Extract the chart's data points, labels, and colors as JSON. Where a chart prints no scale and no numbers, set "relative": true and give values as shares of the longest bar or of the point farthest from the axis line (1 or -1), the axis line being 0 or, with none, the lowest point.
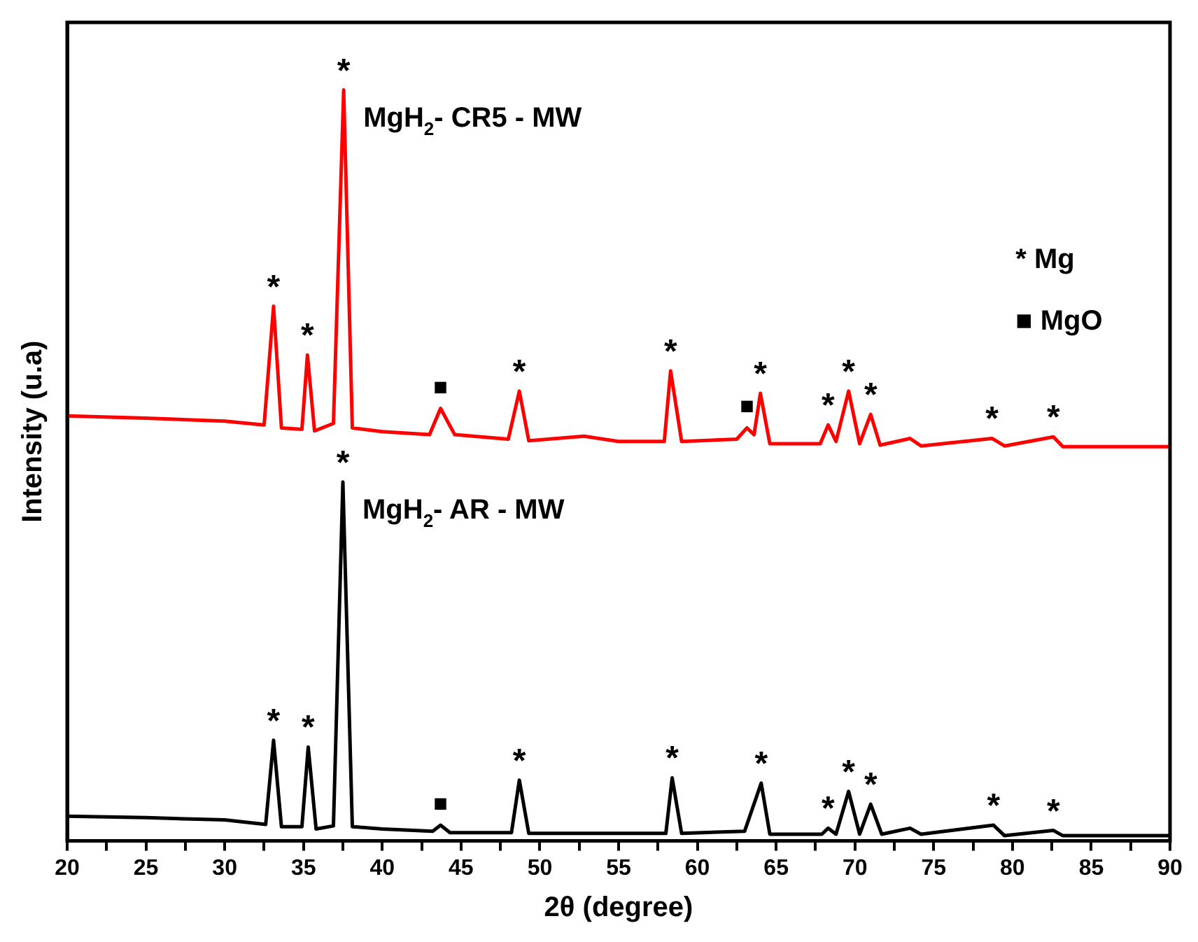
{
  "chart_data": {
    "type": "line",
    "relative": true,
    "xlabel": "2θ (degree)",
    "ylabel": "Intensity (u.a)",
    "xlim": [
      20,
      90
    ],
    "xticks": [
      20,
      {
        "value": 22.5,
        "label": null
      },
      25,
      {
        "value": 27.5,
        "label": null
      },
      30,
      {
        "value": 32.5,
        "label": null
      },
      35,
      {
        "value": 37.5,
        "label": null
      },
      40,
      {
        "value": 42.5,
        "label": null
      },
      45,
      {
        "value": 47.5,
        "label": null
      },
      50,
      {
        "value": 52.5,
        "label": null
      },
      55,
      {
        "value": 57.5,
        "label": null
      },
      60,
      {
        "value": 62.5,
        "label": null
      },
      65,
      {
        "value": 67.5,
        "label": null
      },
      70,
      {
        "value": 72.5,
        "label": null
      },
      75,
      {
        "value": 77.5,
        "label": null
      },
      80,
      {
        "value": 82.5,
        "label": null
      },
      85,
      {
        "value": 87.5,
        "label": null
      },
      90
    ],
    "grid": false,
    "legend": false,
    "marker": "none",
    "line_style": "solid",
    "series": [
      {
        "name": "MgH$_{2}$- CR5 - MW",
        "color": "#ff0000",
        "x": [
          20,
          25,
          30,
          32.5,
          33.1,
          33.6,
          34.9,
          35.25,
          35.7,
          36.9,
          37.55,
          38.1,
          40,
          43.0,
          43.7,
          44.6,
          48.0,
          48.7,
          49.3,
          52.8,
          55,
          57.9,
          58.3,
          59,
          62.5,
          63.15,
          63.6,
          64.0,
          64.6,
          67.8,
          68.3,
          68.8,
          69.6,
          70.3,
          71.0,
          71.6,
          73.5,
          74.2,
          78.7,
          79.5,
          82.6,
          83.2,
          90
        ],
        "values": [
          0.566,
          0.563,
          0.559,
          0.554,
          0.712,
          0.55,
          0.548,
          0.647,
          0.546,
          0.556,
          1,
          0.55,
          0.545,
          0.541,
          0.576,
          0.541,
          0.535,
          0.599,
          0.533,
          0.539,
          0.532,
          0.532,
          0.626,
          0.532,
          0.535,
          0.55,
          0.541,
          0.596,
          0.529,
          0.529,
          0.554,
          0.532,
          0.599,
          0.529,
          0.568,
          0.527,
          0.536,
          0.526,
          0.536,
          0.526,
          0.538,
          0.525,
          0.525
        ]
      },
      {
        "name": "MgH$_{2}$- AR - MW",
        "color": "#000000",
        "x": [
          20,
          25,
          30,
          32.6,
          33.1,
          33.6,
          34.9,
          35.3,
          35.8,
          36.9,
          37.5,
          38.1,
          40,
          43.2,
          43.7,
          44.3,
          48.2,
          48.7,
          49.3,
          55,
          58.0,
          58.4,
          59,
          63.0,
          64.05,
          64.6,
          67.9,
          68.3,
          68.8,
          69.6,
          70.3,
          71.0,
          71.7,
          73.5,
          74.2,
          78.8,
          79.5,
          82.6,
          83.2,
          90
        ],
        "values": [
          0.033,
          0.031,
          0.028,
          0.022,
          0.134,
          0.019,
          0.019,
          0.125,
          0.016,
          0.02,
          0.478,
          0.019,
          0.016,
          0.013,
          0.021,
          0.011,
          0.011,
          0.081,
          0.01,
          0.01,
          0.01,
          0.084,
          0.01,
          0.013,
          0.077,
          0.009,
          0.009,
          0.017,
          0.009,
          0.066,
          0.009,
          0.049,
          0.009,
          0.017,
          0.009,
          0.021,
          0.007,
          0.014,
          0.007,
          0.007
        ]
      }
    ],
    "annotations": [
      {
        "text": "*",
        "x": 33.1,
        "y": 0.712
      },
      {
        "text": "*",
        "x": 35.25,
        "y": 0.647
      },
      {
        "text": "*",
        "x": 37.55,
        "y": 1
      },
      {
        "text": "■",
        "x": 43.7,
        "y": 0.576
      },
      {
        "text": "*",
        "x": 48.7,
        "y": 0.599
      },
      {
        "text": "*",
        "x": 58.3,
        "y": 0.626
      },
      {
        "text": "■",
        "x": 63.15,
        "y": 0.55
      },
      {
        "text": "*",
        "x": 64.0,
        "y": 0.596
      },
      {
        "text": "*",
        "x": 68.3,
        "y": 0.554
      },
      {
        "text": "*",
        "x": 69.6,
        "y": 0.599
      },
      {
        "text": "*",
        "x": 71.0,
        "y": 0.568
      },
      {
        "text": "*",
        "x": 78.7,
        "y": 0.536
      },
      {
        "text": "*",
        "x": 82.6,
        "y": 0.538
      },
      {
        "text": "*",
        "x": 33.1,
        "y": 0.134
      },
      {
        "text": "*",
        "x": 35.3,
        "y": 0.125
      },
      {
        "text": "*",
        "x": 37.5,
        "y": 0.478
      },
      {
        "text": "■",
        "x": 43.7,
        "y": 0.021
      },
      {
        "text": "*",
        "x": 48.7,
        "y": 0.081
      },
      {
        "text": "*",
        "x": 58.4,
        "y": 0.084
      },
      {
        "text": "*",
        "x": 64.05,
        "y": 0.077
      },
      {
        "text": "*",
        "x": 68.3,
        "y": 0.017
      },
      {
        "text": "*",
        "x": 69.6,
        "y": 0.066
      },
      {
        "text": "*",
        "x": 71.0,
        "y": 0.049
      },
      {
        "text": "*",
        "x": 78.8,
        "y": 0.021
      },
      {
        "text": "*",
        "x": 82.6,
        "y": 0.014
      },
      "* Mg",
      "■ MgO"
    ]
  }
}
